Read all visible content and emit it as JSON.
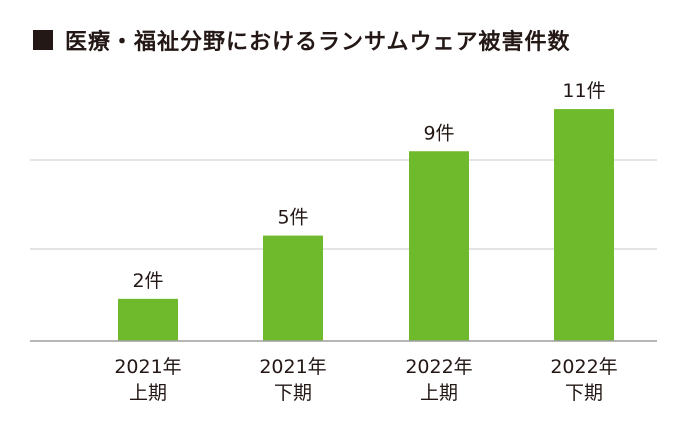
{
  "title": "医療・福祉分野におけるランサムウェア被害件数",
  "chart_data": {
    "type": "bar",
    "title": "医療・福祉分野におけるランサムウェア被害件数",
    "categories": [
      [
        "2021年",
        "上期"
      ],
      [
        "2021年",
        "下期"
      ],
      [
        "2022年",
        "上期"
      ],
      [
        "2022年",
        "下期"
      ]
    ],
    "values": [
      2,
      5,
      9,
      11
    ],
    "data_labels": [
      "2件",
      "5件",
      "9件",
      "11件"
    ],
    "xlabel": "",
    "ylabel": "",
    "ylim": [
      0,
      12
    ],
    "grid": true,
    "bar_color": "#6fb92c",
    "legend": "none"
  }
}
